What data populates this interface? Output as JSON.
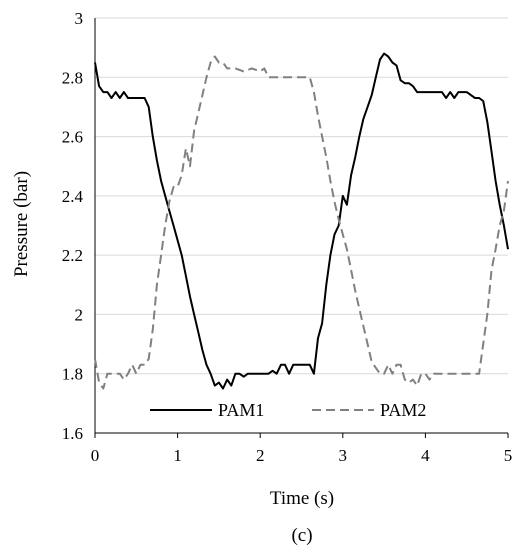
{
  "chart_data": {
    "type": "line",
    "xlabel": "Time (s)",
    "ylabel": "Pressure (bar)",
    "caption": "(c)",
    "xlim": [
      0,
      5
    ],
    "ylim": [
      1.6,
      3
    ],
    "xticks": [
      "0",
      "1",
      "2",
      "3",
      "4",
      "5"
    ],
    "yticks": [
      "1.6",
      "1.8",
      "2",
      "2.2",
      "2.4",
      "2.6",
      "2.8",
      "3"
    ],
    "legend": {
      "placement": "bottom-center"
    },
    "series": [
      {
        "name": "PAM1",
        "color": "#000000",
        "dash": "solid",
        "x": [
          0,
          0.05,
          0.1,
          0.15,
          0.2,
          0.25,
          0.3,
          0.35,
          0.4,
          0.45,
          0.5,
          0.55,
          0.6,
          0.65,
          0.7,
          0.75,
          0.8,
          0.85,
          0.9,
          0.95,
          1.0,
          1.05,
          1.1,
          1.15,
          1.2,
          1.25,
          1.3,
          1.35,
          1.4,
          1.45,
          1.5,
          1.55,
          1.6,
          1.65,
          1.7,
          1.75,
          1.8,
          1.85,
          1.9,
          2.0,
          2.1,
          2.15,
          2.2,
          2.25,
          2.3,
          2.35,
          2.4,
          2.5,
          2.6,
          2.65,
          2.7,
          2.75,
          2.8,
          2.85,
          2.9,
          2.95,
          3.0,
          3.05,
          3.1,
          3.15,
          3.2,
          3.25,
          3.3,
          3.35,
          3.4,
          3.45,
          3.5,
          3.55,
          3.6,
          3.65,
          3.7,
          3.75,
          3.8,
          3.85,
          3.9,
          4.0,
          4.1,
          4.15,
          4.2,
          4.25,
          4.3,
          4.35,
          4.4,
          4.5,
          4.6,
          4.65,
          4.7,
          4.75,
          4.8,
          4.85,
          4.9,
          4.95,
          5.0
        ],
        "y": [
          2.85,
          2.77,
          2.75,
          2.75,
          2.73,
          2.75,
          2.73,
          2.75,
          2.73,
          2.73,
          2.73,
          2.73,
          2.73,
          2.7,
          2.6,
          2.52,
          2.45,
          2.4,
          2.35,
          2.3,
          2.25,
          2.2,
          2.13,
          2.06,
          2.0,
          1.94,
          1.88,
          1.83,
          1.8,
          1.76,
          1.77,
          1.75,
          1.78,
          1.76,
          1.8,
          1.8,
          1.79,
          1.8,
          1.8,
          1.8,
          1.8,
          1.81,
          1.8,
          1.83,
          1.83,
          1.8,
          1.83,
          1.83,
          1.83,
          1.8,
          1.92,
          1.97,
          2.1,
          2.2,
          2.27,
          2.3,
          2.4,
          2.37,
          2.47,
          2.53,
          2.6,
          2.66,
          2.7,
          2.74,
          2.8,
          2.86,
          2.88,
          2.87,
          2.85,
          2.84,
          2.79,
          2.78,
          2.78,
          2.77,
          2.75,
          2.75,
          2.75,
          2.75,
          2.75,
          2.73,
          2.75,
          2.73,
          2.75,
          2.75,
          2.73,
          2.73,
          2.72,
          2.65,
          2.55,
          2.45,
          2.37,
          2.3,
          2.22
        ]
      },
      {
        "name": "PAM2",
        "color": "#808080",
        "dash": "dashed",
        "x": [
          0,
          0.05,
          0.1,
          0.15,
          0.2,
          0.25,
          0.3,
          0.35,
          0.4,
          0.45,
          0.5,
          0.55,
          0.6,
          0.65,
          0.7,
          0.75,
          0.8,
          0.85,
          0.9,
          0.95,
          1.0,
          1.05,
          1.1,
          1.15,
          1.2,
          1.25,
          1.3,
          1.35,
          1.4,
          1.45,
          1.5,
          1.55,
          1.6,
          1.7,
          1.8,
          1.9,
          2.0,
          2.05,
          2.1,
          2.15,
          2.2,
          2.3,
          2.4,
          2.5,
          2.6,
          2.65,
          2.7,
          2.75,
          2.8,
          2.85,
          2.9,
          2.95,
          3.0,
          3.05,
          3.1,
          3.15,
          3.2,
          3.25,
          3.3,
          3.35,
          3.4,
          3.45,
          3.5,
          3.55,
          3.6,
          3.65,
          3.7,
          3.75,
          3.8,
          3.85,
          3.9,
          3.95,
          4.0,
          4.05,
          4.1,
          4.2,
          4.3,
          4.4,
          4.5,
          4.6,
          4.65,
          4.7,
          4.75,
          4.8,
          4.85,
          4.9,
          4.95,
          5.0
        ],
        "y": [
          1.85,
          1.77,
          1.75,
          1.8,
          1.8,
          1.8,
          1.8,
          1.78,
          1.8,
          1.83,
          1.8,
          1.83,
          1.83,
          1.85,
          1.95,
          2.1,
          2.2,
          2.3,
          2.38,
          2.43,
          2.43,
          2.47,
          2.56,
          2.5,
          2.62,
          2.68,
          2.74,
          2.8,
          2.85,
          2.87,
          2.85,
          2.85,
          2.83,
          2.83,
          2.82,
          2.83,
          2.82,
          2.83,
          2.8,
          2.8,
          2.8,
          2.8,
          2.8,
          2.8,
          2.8,
          2.75,
          2.67,
          2.6,
          2.53,
          2.45,
          2.38,
          2.32,
          2.27,
          2.22,
          2.15,
          2.08,
          2.02,
          1.96,
          1.9,
          1.84,
          1.82,
          1.8,
          1.8,
          1.83,
          1.8,
          1.83,
          1.83,
          1.78,
          1.77,
          1.78,
          1.76,
          1.8,
          1.8,
          1.78,
          1.8,
          1.8,
          1.8,
          1.8,
          1.8,
          1.8,
          1.8,
          1.9,
          2.0,
          2.15,
          2.22,
          2.3,
          2.35,
          2.45
        ]
      }
    ]
  }
}
